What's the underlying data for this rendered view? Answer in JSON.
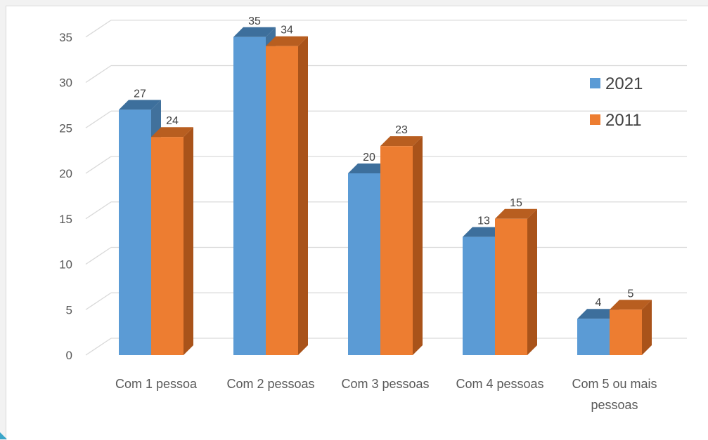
{
  "chart_data": {
    "type": "bar",
    "categories": [
      [
        "Com 1 pessoa"
      ],
      [
        "Com 2 pessoas"
      ],
      [
        "Com 3 pessoas"
      ],
      [
        "Com 4 pessoas"
      ],
      [
        "Com 5 ou mais",
        "pessoas"
      ]
    ],
    "series": [
      {
        "name": "2021",
        "values": [
          27,
          35,
          20,
          13,
          4
        ],
        "labels": [
          "27",
          "35",
          "20",
          "13",
          "4"
        ]
      },
      {
        "name": "2011",
        "values": [
          24,
          34,
          23,
          15,
          5
        ],
        "labels": [
          "24",
          "34",
          "23",
          "15",
          "5"
        ]
      }
    ],
    "colors": {
      "2021": {
        "front": "#5b9bd5",
        "top": "#3d6f9c",
        "side": "#41719c"
      },
      "2011": {
        "front": "#ed7d31",
        "top": "#b85e20",
        "side": "#a9531a"
      },
      "grid": "#d9d9d9",
      "text": "#595959"
    },
    "yticks": [
      0,
      5,
      10,
      15,
      20,
      25,
      30,
      35
    ],
    "ylim": [
      0,
      37.5
    ],
    "title": "",
    "xlabel": "",
    "ylabel": "",
    "grid": true,
    "legend_position": "right",
    "style": "3d-column"
  }
}
